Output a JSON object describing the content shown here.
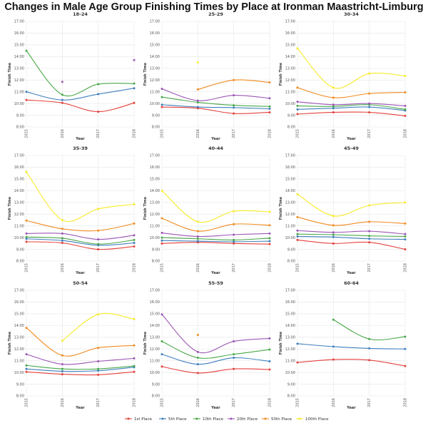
{
  "title": "Changes in Male Age Group Finishing Times by Place at Ironman Maastricht-Limburg",
  "chart_data": {
    "type": "line",
    "x": [
      "2015",
      "2016",
      "2017",
      "2018"
    ],
    "xlabel": "Year",
    "ylabel": "Finish Time",
    "ylim": [
      8,
      17
    ],
    "yticks": [
      "8:00",
      "9:00",
      "10:00",
      "11:00",
      "12:00",
      "13:00",
      "14:00",
      "15:00",
      "16:00",
      "17:00"
    ],
    "grid": true,
    "legend_position": "bottom",
    "series_names": [
      "1st Place",
      "5th Place",
      "10th Place",
      "20th Place",
      "50th Place",
      "100th Place"
    ],
    "colors": [
      "#e4413b",
      "#3f7fbf",
      "#48a848",
      "#9b55b5",
      "#f08b21",
      "#f7ea2a"
    ],
    "panels": [
      {
        "title": "18-24",
        "series": [
          {
            "name": "1st Place",
            "values": [
              10.3,
              10.05,
              9.3,
              10.05
            ]
          },
          {
            "name": "5th Place",
            "values": [
              11.0,
              10.3,
              10.8,
              11.3
            ]
          },
          {
            "name": "10th Place",
            "values": [
              14.5,
              10.75,
              11.65,
              11.7
            ]
          },
          {
            "name": "20th Place",
            "values": [
              null,
              11.85,
              null,
              13.7
            ]
          },
          {
            "name": "50th Place",
            "values": [
              null,
              null,
              null,
              null
            ]
          },
          {
            "name": "100th Place",
            "values": [
              null,
              null,
              null,
              null
            ]
          }
        ]
      },
      {
        "title": "25-29",
        "series": [
          {
            "name": "1st Place",
            "values": [
              9.7,
              9.6,
              9.15,
              9.25
            ]
          },
          {
            "name": "5th Place",
            "values": [
              9.9,
              9.7,
              9.65,
              9.55
            ]
          },
          {
            "name": "10th Place",
            "values": [
              10.55,
              10.1,
              9.85,
              9.75
            ]
          },
          {
            "name": "20th Place",
            "values": [
              11.25,
              10.25,
              10.7,
              10.45
            ]
          },
          {
            "name": "50th Place",
            "values": [
              null,
              11.2,
              12.0,
              11.8
            ]
          },
          {
            "name": "100th Place",
            "values": [
              null,
              13.5,
              null,
              null
            ]
          }
        ]
      },
      {
        "title": "30-34",
        "series": [
          {
            "name": "1st Place",
            "values": [
              9.1,
              9.25,
              9.25,
              8.95
            ]
          },
          {
            "name": "5th Place",
            "values": [
              9.5,
              9.6,
              9.7,
              9.4
            ]
          },
          {
            "name": "10th Place",
            "values": [
              9.8,
              9.75,
              9.9,
              9.5
            ]
          },
          {
            "name": "20th Place",
            "values": [
              10.15,
              9.9,
              10.0,
              9.8
            ]
          },
          {
            "name": "50th Place",
            "values": [
              11.35,
              10.5,
              10.85,
              10.95
            ]
          },
          {
            "name": "100th Place",
            "values": [
              14.7,
              11.35,
              12.55,
              12.35
            ]
          }
        ]
      },
      {
        "title": "35-39",
        "series": [
          {
            "name": "1st Place",
            "values": [
              9.65,
              9.55,
              9.0,
              9.25
            ]
          },
          {
            "name": "5th Place",
            "values": [
              9.9,
              9.75,
              9.35,
              9.55
            ]
          },
          {
            "name": "10th Place",
            "values": [
              10.05,
              9.95,
              9.45,
              9.8
            ]
          },
          {
            "name": "20th Place",
            "values": [
              10.35,
              10.35,
              9.85,
              10.2
            ]
          },
          {
            "name": "50th Place",
            "values": [
              11.45,
              10.75,
              10.6,
              11.2
            ]
          },
          {
            "name": "100th Place",
            "values": [
              15.6,
              11.5,
              12.45,
              12.85
            ]
          }
        ]
      },
      {
        "title": "40-44",
        "series": [
          {
            "name": "1st Place",
            "values": [
              9.5,
              9.6,
              9.5,
              9.45
            ]
          },
          {
            "name": "5th Place",
            "values": [
              9.75,
              9.7,
              9.65,
              9.7
            ]
          },
          {
            "name": "10th Place",
            "values": [
              10.0,
              9.9,
              9.8,
              9.95
            ]
          },
          {
            "name": "20th Place",
            "values": [
              10.4,
              10.1,
              10.25,
              10.35
            ]
          },
          {
            "name": "50th Place",
            "values": [
              11.65,
              10.55,
              11.15,
              11.05
            ]
          },
          {
            "name": "100th Place",
            "values": [
              14.0,
              11.35,
              12.25,
              12.2
            ]
          }
        ]
      },
      {
        "title": "45-49",
        "series": [
          {
            "name": "1st Place",
            "values": [
              9.8,
              9.5,
              9.6,
              9.0
            ]
          },
          {
            "name": "5th Place",
            "values": [
              10.1,
              10.05,
              9.9,
              9.85
            ]
          },
          {
            "name": "10th Place",
            "values": [
              10.3,
              10.25,
              10.15,
              10.1
            ]
          },
          {
            "name": "20th Place",
            "values": [
              10.6,
              10.45,
              10.55,
              10.3
            ]
          },
          {
            "name": "50th Place",
            "values": [
              11.75,
              11.05,
              11.35,
              11.2
            ]
          },
          {
            "name": "100th Place",
            "values": [
              13.7,
              11.85,
              12.75,
              13.0
            ]
          }
        ]
      },
      {
        "title": "50-54",
        "series": [
          {
            "name": "1st Place",
            "values": [
              10.05,
              9.85,
              9.8,
              10.05
            ]
          },
          {
            "name": "5th Place",
            "values": [
              10.3,
              10.1,
              10.15,
              10.45
            ]
          },
          {
            "name": "10th Place",
            "values": [
              10.6,
              10.3,
              10.3,
              10.55
            ]
          },
          {
            "name": "20th Place",
            "values": [
              11.55,
              10.7,
              10.95,
              11.2
            ]
          },
          {
            "name": "50th Place",
            "values": [
              13.8,
              11.45,
              12.1,
              12.3
            ]
          },
          {
            "name": "100th Place",
            "values": [
              null,
              12.7,
              14.95,
              14.55
            ]
          }
        ]
      },
      {
        "title": "55-59",
        "series": [
          {
            "name": "1st Place",
            "values": [
              10.5,
              9.95,
              10.3,
              10.25
            ]
          },
          {
            "name": "5th Place",
            "values": [
              11.55,
              10.7,
              11.25,
              10.95
            ]
          },
          {
            "name": "10th Place",
            "values": [
              12.65,
              11.25,
              11.55,
              11.95
            ]
          },
          {
            "name": "20th Place",
            "values": [
              14.95,
              11.75,
              12.65,
              12.9
            ]
          },
          {
            "name": "50th Place",
            "values": [
              null,
              13.2,
              null,
              null
            ]
          },
          {
            "name": "100th Place",
            "values": [
              null,
              null,
              null,
              null
            ]
          }
        ]
      },
      {
        "title": "60-64",
        "series": [
          {
            "name": "1st Place",
            "values": [
              10.85,
              11.1,
              11.05,
              10.55
            ]
          },
          {
            "name": "5th Place",
            "values": [
              12.45,
              12.2,
              12.05,
              12.0
            ]
          },
          {
            "name": "10th Place",
            "values": [
              null,
              14.5,
              12.85,
              13.05
            ]
          },
          {
            "name": "20th Place",
            "values": [
              null,
              null,
              null,
              null
            ]
          },
          {
            "name": "50th Place",
            "values": [
              null,
              null,
              null,
              null
            ]
          },
          {
            "name": "100th Place",
            "values": [
              null,
              null,
              null,
              null
            ]
          }
        ]
      }
    ]
  }
}
